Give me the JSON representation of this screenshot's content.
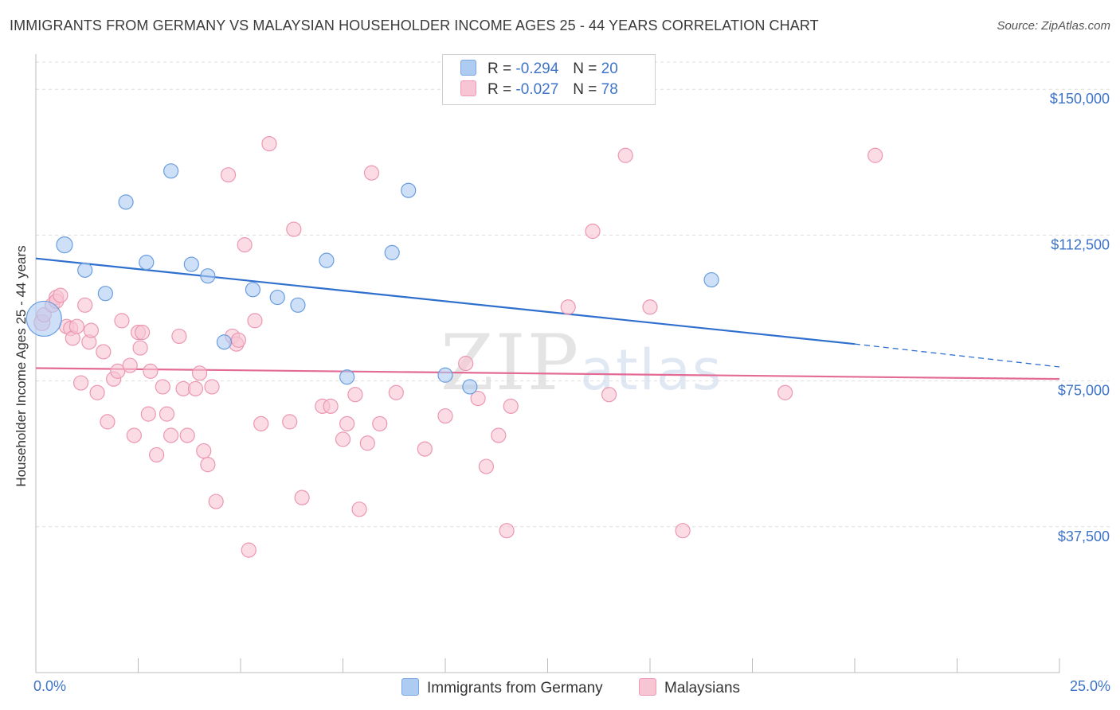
{
  "header": {
    "title": "IMMIGRANTS FROM GERMANY VS MALAYSIAN HOUSEHOLDER INCOME AGES 25 - 44 YEARS CORRELATION CHART",
    "source": "Source: ZipAtlas.com"
  },
  "watermark": {
    "zip": "ZIP",
    "atlas": "atlas"
  },
  "legend_top": {
    "rows": [
      {
        "r_label": "R =",
        "r_value": "-0.294",
        "n_label": "N =",
        "n_value": "20",
        "color": "#aecbf2",
        "stroke": "#7aa6e0"
      },
      {
        "r_label": "R =",
        "r_value": "-0.027",
        "n_label": "N =",
        "n_value": "78",
        "color": "#f8c5d4",
        "stroke": "#ee9ab5"
      }
    ]
  },
  "legend_bottom": {
    "items": [
      {
        "label": "Immigrants from Germany",
        "color": "#aecbf2",
        "stroke": "#7aa6e0"
      },
      {
        "label": "Malaysians",
        "color": "#f8c5d4",
        "stroke": "#ee9ab5"
      }
    ]
  },
  "chart_data": {
    "type": "scatter",
    "title": "IMMIGRANTS FROM GERMANY VS MALAYSIAN HOUSEHOLDER INCOME AGES 25 - 44 YEARS CORRELATION CHART",
    "xlabel": "",
    "ylabel": "Householder Income Ages 25 - 44 years",
    "xlim": [
      0,
      25
    ],
    "ylim": [
      0,
      157000
    ],
    "x_tick_labels": [
      "0.0%",
      "25.0%"
    ],
    "y_ticks": [
      37500,
      75000,
      112500,
      150000
    ],
    "y_tick_labels": [
      "$37,500",
      "$75,000",
      "$112,500",
      "$150,000"
    ],
    "grid": true,
    "legend_position": "top-center",
    "colors": {
      "germany_fill": "#aecbf2",
      "germany_stroke": "#6a9de0",
      "germany_line": "#2f6fce",
      "malaysia_fill": "#f8c5d4",
      "malaysia_stroke": "#ec97b2",
      "malaysia_line": "#e36b95",
      "tick_label": "#3e74c8",
      "grid": "#dddddd"
    },
    "series": [
      {
        "name": "Immigrants from Germany",
        "x": [
          0.2,
          0.7,
          1.2,
          1.7,
          2.2,
          2.7,
          3.3,
          3.8,
          4.2,
          4.6,
          5.3,
          5.9,
          6.4,
          7.1,
          7.6,
          8.7,
          9.1,
          10.0,
          10.6,
          16.5
        ],
        "y": [
          91000,
          110000,
          103500,
          97500,
          121000,
          105500,
          129000,
          105000,
          102000,
          85000,
          98500,
          96500,
          94500,
          106000,
          76000,
          108000,
          124000,
          76500,
          73500,
          101000
        ],
        "sizes": [
          22,
          10,
          9,
          9,
          9,
          9,
          9,
          9,
          9,
          9,
          9,
          9,
          9,
          9,
          9,
          9,
          9,
          9,
          9,
          9
        ],
        "trend": {
          "x0": 0,
          "y0": 106500,
          "x1": 20,
          "y1": 84500,
          "x_end": 25,
          "y_end": 78600
        }
      },
      {
        "name": "Malaysians",
        "x": [
          0.15,
          0.2,
          0.4,
          0.5,
          0.5,
          0.6,
          0.75,
          0.85,
          0.9,
          1.0,
          1.1,
          1.2,
          1.3,
          1.35,
          1.5,
          1.65,
          1.75,
          1.9,
          2.0,
          2.1,
          2.3,
          2.4,
          2.5,
          2.55,
          2.6,
          2.75,
          2.8,
          2.95,
          3.1,
          3.2,
          3.3,
          3.5,
          3.6,
          3.7,
          3.9,
          4.0,
          4.1,
          4.2,
          4.3,
          4.4,
          4.7,
          4.8,
          4.9,
          4.95,
          5.1,
          5.2,
          5.35,
          5.5,
          5.7,
          6.2,
          6.3,
          6.5,
          7.0,
          7.2,
          7.5,
          7.6,
          7.8,
          7.9,
          8.1,
          8.2,
          8.4,
          8.8,
          9.5,
          10.0,
          10.5,
          10.8,
          11.0,
          11.3,
          11.5,
          11.6,
          13.0,
          13.6,
          14.0,
          14.4,
          15.0,
          15.8,
          18.3,
          20.5
        ],
        "y": [
          90000,
          92000,
          94500,
          96500,
          95500,
          97000,
          89000,
          88500,
          86000,
          89000,
          74500,
          94500,
          85000,
          88000,
          72000,
          82500,
          64500,
          75500,
          77500,
          90500,
          79000,
          61000,
          87500,
          83500,
          87500,
          66500,
          77500,
          56000,
          73500,
          66500,
          61000,
          86500,
          73000,
          61000,
          73000,
          77000,
          57000,
          53500,
          73500,
          44000,
          128000,
          86500,
          84500,
          85500,
          110000,
          31500,
          90500,
          64000,
          136000,
          64500,
          114000,
          45000,
          68500,
          68500,
          60000,
          64000,
          71500,
          42000,
          59000,
          128500,
          64000,
          72000,
          57500,
          66000,
          79500,
          70500,
          53000,
          61000,
          36500,
          68500,
          94000,
          113500,
          71500,
          133000,
          94000,
          36500,
          72000,
          133000
        ],
        "sizes": [
          10,
          9,
          9,
          9,
          9,
          9,
          9,
          9,
          9,
          9,
          9,
          9,
          9,
          9,
          9,
          9,
          9,
          9,
          9,
          9,
          9,
          9,
          9,
          9,
          9,
          9,
          9,
          9,
          9,
          9,
          9,
          9,
          9,
          9,
          9,
          9,
          9,
          9,
          9,
          9,
          9,
          9,
          9,
          9,
          9,
          9,
          9,
          9,
          9,
          9,
          9,
          9,
          9,
          9,
          9,
          9,
          9,
          9,
          9,
          9,
          9,
          9,
          9,
          9,
          9,
          9,
          9,
          9,
          9,
          9,
          9,
          9,
          9,
          9,
          9,
          9,
          9,
          9
        ],
        "trend": {
          "x0": 0,
          "y0": 78300,
          "x1": 25,
          "y1": 75500
        }
      }
    ]
  }
}
